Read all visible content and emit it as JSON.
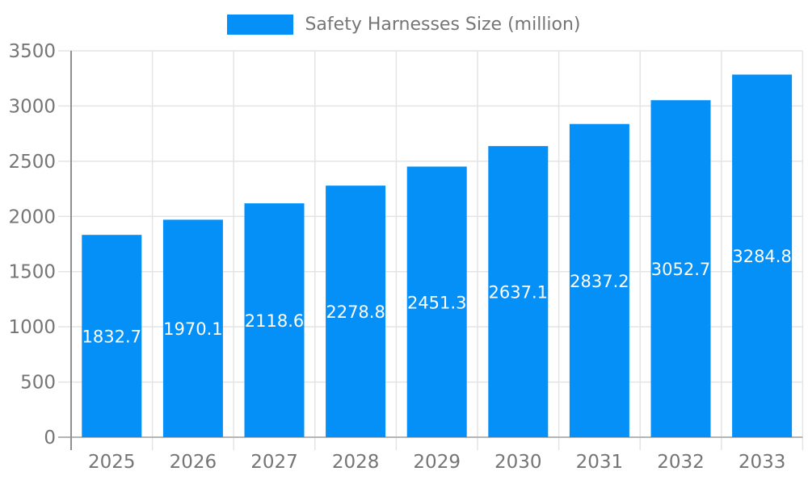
{
  "chart_data": {
    "type": "bar",
    "categories": [
      "2025",
      "2026",
      "2027",
      "2028",
      "2029",
      "2030",
      "2031",
      "2032",
      "2033"
    ],
    "series": [
      {
        "name": "Safety Harnesses Size (million)",
        "values": [
          1832.7,
          1970.1,
          2118.6,
          2278.8,
          2451.3,
          2637.1,
          2837.2,
          3052.7,
          3284.8
        ]
      }
    ],
    "xlabel": "",
    "ylabel": "",
    "ylim": [
      0,
      3500
    ],
    "yticks": [
      0,
      500,
      1000,
      1500,
      2000,
      2500,
      3000,
      3500
    ],
    "grid": "on",
    "legend_position": "top-center",
    "value_label_decimals": 1,
    "colors": {
      "bar_fill": "#0590F8",
      "data_label": "#FFFFFF",
      "axis_tick_label": "#757575",
      "gridline": "#E4E4E4",
      "y_axis_line": "#8F8F8F",
      "x_axis_line": "#B5B5B5",
      "legend_text": "#757575",
      "background": "#FFFFFF"
    }
  }
}
